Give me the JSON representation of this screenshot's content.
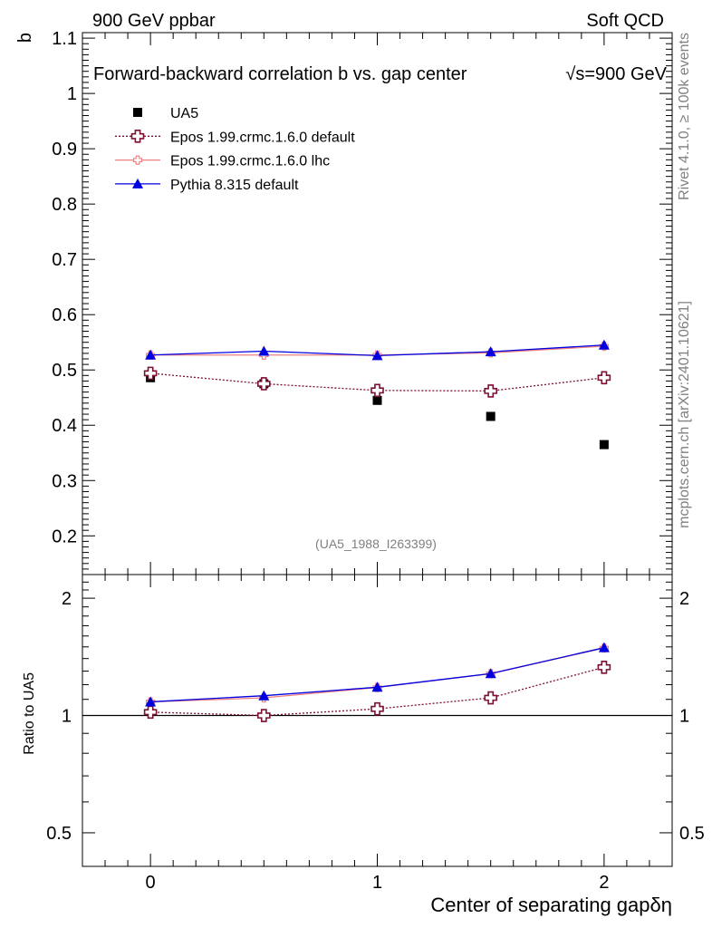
{
  "header": {
    "left": "900 GeV ppbar",
    "right": "Soft QCD"
  },
  "side": {
    "rivet": "Rivet 4.1.0, ≥ 100k events",
    "mcplots": "mcplots.cern.ch [arXiv:2401.10621]"
  },
  "chart_data": {
    "type": "line",
    "title_left": "Forward-backward correlation b  vs. gap center",
    "title_right": "√s=900 GeV",
    "ylabel": "b",
    "xlabel": "Center of separating gapδη",
    "ratio_ylabel": "Ratio to UA5",
    "ref_label": "(UA5_1988_I263399)",
    "xlim": [
      -0.3,
      2.3
    ],
    "ylim": [
      0.13,
      1.11
    ],
    "ratio_ylim": [
      0.41,
      2.3
    ],
    "x_ticks": [
      "0",
      "1",
      "2"
    ],
    "y_ticks": [
      "0.2",
      "0.3",
      "0.4",
      "0.5",
      "0.6",
      "0.7",
      "0.8",
      "0.9",
      "1",
      "1.1"
    ],
    "ratio_ticks": [
      "0.5",
      "1",
      "2"
    ],
    "x": [
      0,
      0.5,
      1,
      1.5,
      2
    ],
    "series": [
      {
        "name": "UA5",
        "marker": "square",
        "color": "#000000",
        "line": "none",
        "values": [
          0.486,
          0.475,
          0.445,
          0.416,
          0.365
        ],
        "ratio": [
          1,
          1,
          1,
          1,
          1
        ]
      },
      {
        "name": "Epos 1.99.crmc.1.6.0 default",
        "marker": "open-cross",
        "color": "#7b1030",
        "line": "dotted",
        "values": [
          0.494,
          0.475,
          0.463,
          0.462,
          0.486
        ],
        "ratio": [
          1.02,
          1.0,
          1.04,
          1.11,
          1.33
        ]
      },
      {
        "name": "Epos 1.99.crmc.1.6.0 lhc",
        "marker": "small-cross",
        "color": "#f08080",
        "line": "solid",
        "values": [
          0.527,
          0.527,
          0.527,
          0.531,
          0.543
        ],
        "ratio": [
          1.084,
          1.11,
          1.18,
          1.28,
          1.49
        ]
      },
      {
        "name": "Pythia 8.315 default",
        "marker": "triangle",
        "color": "#0000e0",
        "line": "solid",
        "values": [
          0.527,
          0.534,
          0.526,
          0.533,
          0.545
        ],
        "ratio": [
          1.084,
          1.124,
          1.182,
          1.281,
          1.493
        ]
      }
    ]
  }
}
